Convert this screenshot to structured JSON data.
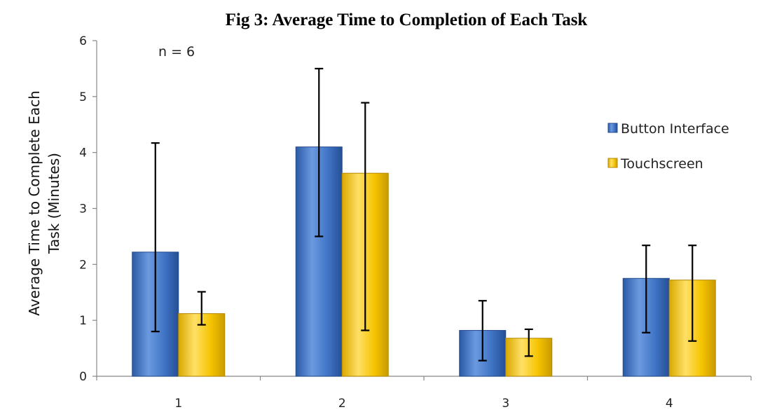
{
  "chart_data": {
    "type": "bar",
    "title": "Fig 3: Average Time to Completion of Each Task",
    "ylabel_line1": "Average Time to Complete Each",
    "ylabel_line2": "Task (Minutes)",
    "xlabel": "",
    "annotation": "n = 6",
    "categories": [
      "1",
      "2",
      "3",
      "4"
    ],
    "ylim": [
      0,
      6
    ],
    "yticks": [
      0,
      1,
      2,
      3,
      4,
      5,
      6
    ],
    "grid": false,
    "legend_position": "right",
    "series": [
      {
        "name": "Button Interface",
        "color": "#3f73c4",
        "values": [
          2.22,
          4.1,
          0.82,
          1.75
        ],
        "error_low": [
          0.8,
          2.5,
          0.28,
          0.78
        ],
        "error_high": [
          4.17,
          5.5,
          1.35,
          2.34
        ]
      },
      {
        "name": "Touchscreen",
        "color": "#f5c400",
        "values": [
          1.12,
          3.63,
          0.68,
          1.72
        ],
        "error_low": [
          0.92,
          0.82,
          0.36,
          0.63
        ],
        "error_high": [
          1.51,
          4.89,
          0.84,
          2.34
        ]
      }
    ]
  }
}
